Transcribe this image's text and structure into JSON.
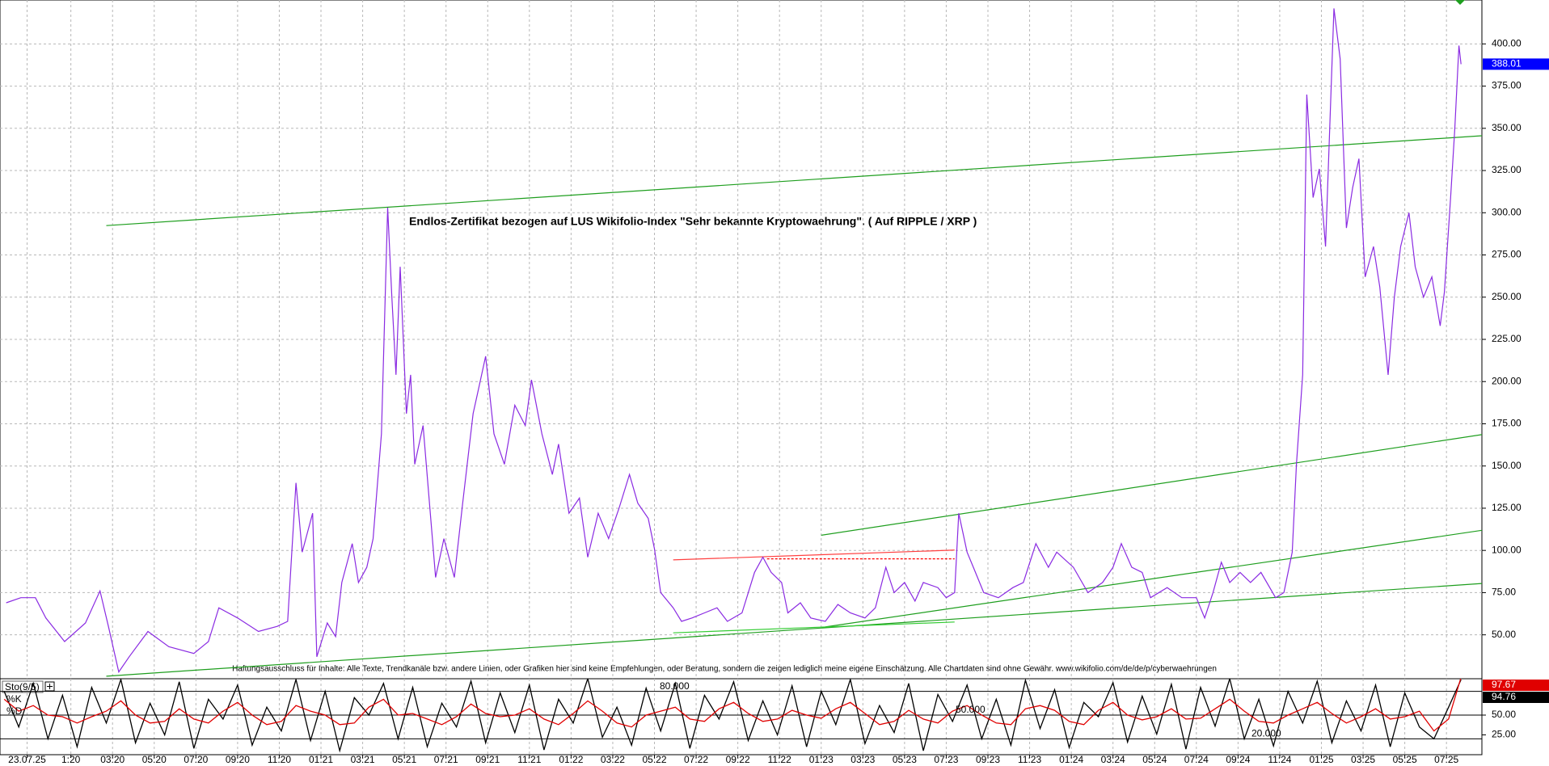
{
  "chart_data": [
    {
      "type": "line",
      "title": "Endlos-Zertifikat bezogen auf LUS Wikifolio-Index \"Sehr bekannte Kryptowaehrung\". ( Auf RIPPLE / XRP )",
      "note": "Haftungsausschluss für Inhalte: Alle Texte, Trendkanäle bzw. andere Linien, oder Grafiken hier sind keine Empfehlungen, oder Beratung, sondern die zeigen lediglich meine eigene Einschätzung. Alle Chartdaten sind ohne Gewähr. www.wikifolio.com/de/de/p/cyberwaehrungen",
      "x": [
        -3.1,
        -2.4,
        -1.7,
        -1.2,
        -0.3,
        0.7,
        1.4,
        1.8,
        2.3,
        2.8,
        3.7,
        4.7,
        5.9,
        6.6,
        7.1,
        8.0,
        9.0,
        9.9,
        10.4,
        10.8,
        11.1,
        11.6,
        11.8,
        12.3,
        12.7,
        13.0,
        13.5,
        13.8,
        14.2,
        14.5,
        14.9,
        15.2,
        15.4,
        15.6,
        15.8,
        16.1,
        16.3,
        16.5,
        16.9,
        17.5,
        17.9,
        18.4,
        18.8,
        19.3,
        19.6,
        19.9,
        20.3,
        20.8,
        21.3,
        21.8,
        22.1,
        22.6,
        23.1,
        23.4,
        23.9,
        24.4,
        24.8,
        25.3,
        25.8,
        26.3,
        26.8,
        27.2,
        27.7,
        28.0,
        28.3,
        28.9,
        29.3,
        29.8,
        30.4,
        31.0,
        31.5,
        32.2,
        32.8,
        33.2,
        33.6,
        34.1,
        34.4,
        35.0,
        35.5,
        36.2,
        36.8,
        37.4,
        38.1,
        38.6,
        39.1,
        39.5,
        40.0,
        40.5,
        40.9,
        41.6,
        42.0,
        42.4,
        42.6,
        43.0,
        43.3,
        43.8,
        44.5,
        45.2,
        45.7,
        46.3,
        46.9,
        47.3,
        48.1,
        48.8,
        49.5,
        50.0,
        50.4,
        50.9,
        51.4,
        51.8,
        52.6,
        53.3,
        54.0,
        54.4,
        54.8,
        55.2,
        55.6,
        56.1,
        56.6,
        57.1,
        57.8,
        58.2,
        58.6,
        58.8,
        59.1,
        59.3,
        59.6,
        59.9,
        60.2,
        60.6,
        60.9,
        61.2,
        61.5,
        61.8,
        62.1,
        62.5,
        62.8,
        63.2,
        63.5,
        63.8,
        64.2,
        64.5,
        64.9,
        65.3,
        65.7,
        65.9,
        66.2,
        66.4,
        66.6,
        66.7
      ],
      "series": [
        {
          "color": "#8a2be2",
          "values": [
            69,
            72,
            72,
            60,
            46,
            57,
            76,
            55,
            28,
            37,
            52,
            43,
            39,
            46,
            66,
            60,
            52,
            55,
            58,
            140,
            99,
            122,
            37,
            57,
            49,
            81,
            104,
            81,
            90,
            107,
            169,
            303,
            250,
            204,
            268,
            181,
            204,
            151,
            174,
            84,
            107,
            84,
            128,
            181,
            198,
            215,
            169,
            151,
            186,
            174,
            201,
            169,
            145,
            163,
            122,
            131,
            96,
            122,
            107,
            125,
            145,
            128,
            119,
            101,
            75,
            66,
            58,
            60,
            63,
            66,
            58,
            63,
            87,
            96,
            87,
            81,
            63,
            69,
            60,
            58,
            68,
            63,
            60,
            66,
            90,
            75,
            81,
            70,
            81,
            78,
            72,
            75,
            122,
            99,
            90,
            75,
            72,
            78,
            81,
            104,
            90,
            99,
            90,
            75,
            81,
            90,
            104,
            90,
            87,
            72,
            78,
            72,
            72,
            60,
            75,
            93,
            81,
            87,
            81,
            87,
            72,
            75,
            99,
            151,
            204,
            370,
            309,
            326,
            280,
            421,
            391,
            291,
            315,
            332,
            262,
            280,
            256,
            204,
            250,
            280,
            300,
            268,
            250,
            262,
            233,
            253,
            309,
            350,
            399,
            388.01
          ]
        }
      ],
      "lines": [
        {
          "x": [
            1.7,
            67.7
          ],
          "y": [
            292.4,
            345.6
          ],
          "color": "#1e9e1e"
        },
        {
          "x": [
            36.0,
            67.7
          ],
          "y": [
            109.0,
            168.6
          ],
          "color": "#1e9e1e"
        },
        {
          "x": [
            36.2,
            67.7
          ],
          "y": [
            54.7,
            111.9
          ],
          "color": "#1e9e1e"
        },
        {
          "x": [
            1.7,
            67.7
          ],
          "y": [
            25.5,
            80.4
          ],
          "color": "#1e9e1e"
        },
        {
          "x": [
            28.9,
            42.4
          ],
          "y": [
            51.2,
            57.6
          ],
          "color": "#33cc33"
        },
        {
          "x": [
            28.9,
            42.4
          ],
          "y": [
            94.4,
            100.2
          ],
          "color": "#ff4040"
        },
        {
          "x": [
            33.4,
            42.4
          ],
          "y": [
            95.0,
            95.0
          ],
          "color": "#ff0000",
          "dashed": true
        }
      ],
      "xlim": [
        -3.4,
        67.7
      ],
      "ylim": [
        24,
        426
      ],
      "yticks": [
        {
          "value": 50,
          "label": "50.00"
        },
        {
          "value": 75,
          "label": "75.00"
        },
        {
          "value": 100,
          "label": "100.00"
        },
        {
          "value": 125,
          "label": "125.00"
        },
        {
          "value": 150,
          "label": "150.00"
        },
        {
          "value": 175,
          "label": "175.00"
        },
        {
          "value": 200,
          "label": "200.00"
        },
        {
          "value": 225,
          "label": "225.00"
        },
        {
          "value": 250,
          "label": "250.00"
        },
        {
          "value": 275,
          "label": "275.00"
        },
        {
          "value": 300,
          "label": "300.00"
        },
        {
          "value": 325,
          "label": "325.00"
        },
        {
          "value": 350,
          "label": "350.00"
        },
        {
          "value": 375,
          "label": "375.00"
        },
        {
          "value": 400,
          "label": "400.00"
        }
      ],
      "grid": true
    },
    {
      "type": "line",
      "title": "Sto(9/5)",
      "x": [
        -3.2,
        -2.5,
        -1.8,
        -1.1,
        -0.4,
        0.3,
        1.0,
        1.7,
        2.4,
        3.1,
        3.8,
        4.5,
        5.2,
        5.9,
        6.6,
        7.3,
        8.0,
        8.7,
        9.4,
        10.1,
        10.8,
        11.5,
        12.2,
        12.9,
        13.6,
        14.3,
        15.0,
        15.7,
        16.4,
        17.1,
        17.8,
        18.5,
        19.2,
        19.9,
        20.6,
        21.3,
        22.0,
        22.7,
        23.4,
        24.1,
        24.8,
        25.5,
        26.2,
        26.9,
        27.6,
        28.3,
        29.0,
        29.7,
        30.4,
        31.1,
        31.8,
        32.5,
        33.2,
        33.9,
        34.6,
        35.3,
        36.0,
        36.7,
        37.4,
        38.1,
        38.8,
        39.5,
        40.2,
        40.9,
        41.6,
        42.3,
        43.0,
        43.7,
        44.4,
        45.1,
        45.8,
        46.5,
        47.2,
        47.9,
        48.6,
        49.3,
        50.0,
        50.7,
        51.4,
        52.1,
        52.8,
        53.5,
        54.2,
        54.9,
        55.6,
        56.3,
        57.0,
        57.7,
        58.4,
        59.1,
        59.8,
        60.5,
        61.2,
        61.9,
        62.6,
        63.3,
        64.0,
        64.7,
        65.4,
        66.1,
        66.7
      ],
      "series": [
        {
          "name": "%K",
          "color": "#000000",
          "values": [
            80,
            35,
            90,
            20,
            75,
            10,
            85,
            40,
            95,
            15,
            65,
            25,
            92,
            8,
            70,
            45,
            88,
            12,
            60,
            30,
            95,
            18,
            80,
            5,
            72,
            50,
            90,
            20,
            85,
            10,
            65,
            35,
            93,
            15,
            78,
            28,
            88,
            6,
            70,
            40,
            96,
            22,
            60,
            12,
            84,
            30,
            90,
            8,
            75,
            45,
            92,
            18,
            68,
            25,
            87,
            10,
            80,
            38,
            95,
            14,
            62,
            28,
            90,
            5,
            76,
            42,
            88,
            20,
            70,
            12,
            94,
            33,
            82,
            9,
            66,
            48,
            91,
            16,
            74,
            26,
            89,
            7,
            85,
            36,
            96,
            20,
            70,
            11,
            80,
            40,
            93,
            15,
            68,
            30,
            88,
            10,
            78,
            35,
            20,
            60,
            94.76
          ]
        },
        {
          "name": "%D",
          "color": "#e00000",
          "values": [
            70,
            55,
            62,
            50,
            48,
            40,
            48,
            55,
            68,
            50,
            40,
            42,
            58,
            45,
            40,
            55,
            66,
            50,
            38,
            42,
            62,
            55,
            50,
            38,
            40,
            60,
            70,
            50,
            52,
            45,
            38,
            48,
            64,
            52,
            48,
            50,
            58,
            45,
            38,
            52,
            68,
            55,
            40,
            35,
            50,
            55,
            60,
            45,
            42,
            58,
            66,
            52,
            42,
            45,
            56,
            50,
            46,
            58,
            66,
            52,
            38,
            42,
            56,
            45,
            40,
            55,
            62,
            50,
            40,
            38,
            58,
            62,
            56,
            42,
            38,
            56,
            66,
            50,
            44,
            48,
            58,
            45,
            46,
            58,
            70,
            55,
            42,
            40,
            50,
            58,
            66,
            52,
            40,
            48,
            58,
            45,
            48,
            55,
            30,
            45,
            97.67
          ]
        }
      ],
      "levels": [
        {
          "value": 80,
          "label": "80.000"
        },
        {
          "value": 50,
          "label": "50.000"
        },
        {
          "value": 20,
          "label": "20.000"
        }
      ],
      "xlim": [
        -3.4,
        67.7
      ],
      "ylim": [
        0,
        100
      ],
      "yticks": [
        {
          "value": 50,
          "label": "50.00"
        },
        {
          "value": 25,
          "label": "25.00"
        }
      ],
      "xticks": [
        {
          "value": -2.1,
          "label": "23.07.25"
        },
        {
          "value": 0,
          "label": "1:20"
        },
        {
          "value": 2,
          "label": "03:20"
        },
        {
          "value": 4,
          "label": "05:20"
        },
        {
          "value": 6,
          "label": "07:20"
        },
        {
          "value": 8,
          "label": "09:20"
        },
        {
          "value": 10,
          "label": "11:20"
        },
        {
          "value": 12,
          "label": "01:21"
        },
        {
          "value": 14,
          "label": "03:21"
        },
        {
          "value": 16,
          "label": "05:21"
        },
        {
          "value": 18,
          "label": "07:21"
        },
        {
          "value": 20,
          "label": "09:21"
        },
        {
          "value": 22,
          "label": "11:21"
        },
        {
          "value": 24,
          "label": "01:22"
        },
        {
          "value": 26,
          "label": "03:22"
        },
        {
          "value": 28,
          "label": "05:22"
        },
        {
          "value": 30,
          "label": "07:22"
        },
        {
          "value": 32,
          "label": "09:22"
        },
        {
          "value": 34,
          "label": "11:22"
        },
        {
          "value": 36,
          "label": "01:23"
        },
        {
          "value": 38,
          "label": "03:23"
        },
        {
          "value": 40,
          "label": "05:23"
        },
        {
          "value": 42,
          "label": "07:23"
        },
        {
          "value": 44,
          "label": "09:23"
        },
        {
          "value": 46,
          "label": "11:23"
        },
        {
          "value": 48,
          "label": "01:24"
        },
        {
          "value": 50,
          "label": "03:24"
        },
        {
          "value": 52,
          "label": "05:24"
        },
        {
          "value": 54,
          "label": "07:24"
        },
        {
          "value": 56,
          "label": "09:24"
        },
        {
          "value": 58,
          "label": "11:24"
        },
        {
          "value": 60,
          "label": "01:25"
        },
        {
          "value": 62,
          "label": "03:25"
        },
        {
          "value": 64,
          "label": "05:25"
        },
        {
          "value": 66,
          "label": "07:25"
        }
      ],
      "grid": true
    }
  ]
}
